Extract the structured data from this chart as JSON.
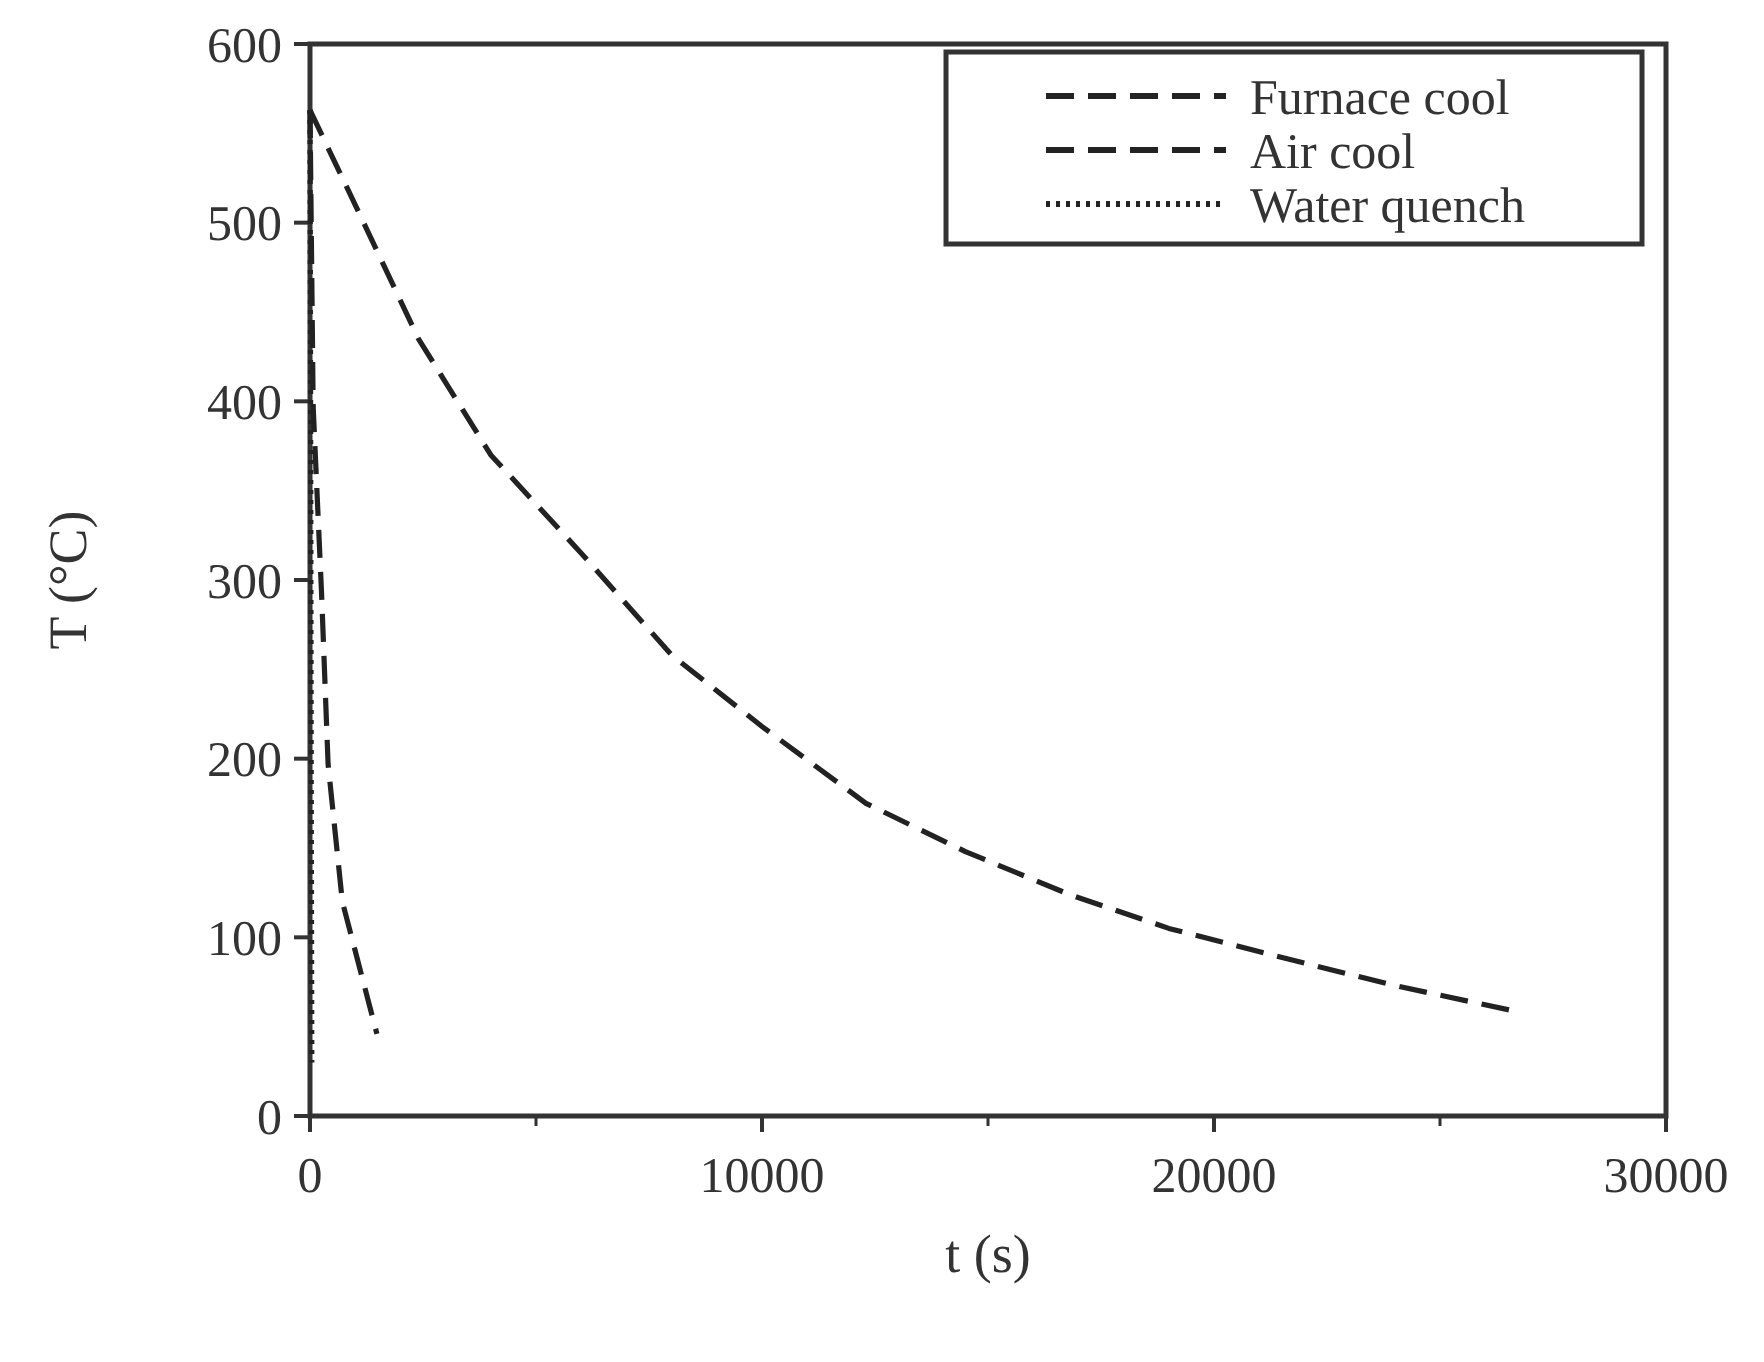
{
  "chart_data": {
    "type": "line",
    "xlabel": "t (s)",
    "ylabel": "T (°C)",
    "xlim": [
      0,
      30000
    ],
    "xticks": [
      0,
      10000,
      20000,
      30000
    ],
    "ylim": [
      0,
      600
    ],
    "yticks": [
      0,
      100,
      200,
      300,
      400,
      500,
      600
    ],
    "grid": false,
    "legend": "top right",
    "marker": "none",
    "series": [
      {
        "name": "Furnace cool",
        "color": "#222222",
        "line_style": "dashed",
        "x": [
          0,
          1000,
          2400,
          4000,
          6000,
          8000,
          10000,
          12300,
          14500,
          16800,
          19000,
          21300,
          24000,
          26600
        ],
        "values": [
          563,
          510,
          435,
          370,
          315,
          258,
          218,
          175,
          148,
          124,
          105,
          90,
          73,
          59
        ]
      },
      {
        "name": "Air cool",
        "color": "#222222",
        "line_style": "dashed",
        "x": [
          0,
          70,
          255,
          400,
          715,
          1480
        ],
        "values": [
          563,
          397,
          293,
          197,
          120,
          46
        ]
      },
      {
        "name": "Water quench",
        "color": "#222222",
        "line_style": "dotted",
        "x": [
          0,
          10,
          20,
          30,
          40
        ],
        "values": [
          563,
          450,
          300,
          150,
          30
        ]
      }
    ]
  }
}
